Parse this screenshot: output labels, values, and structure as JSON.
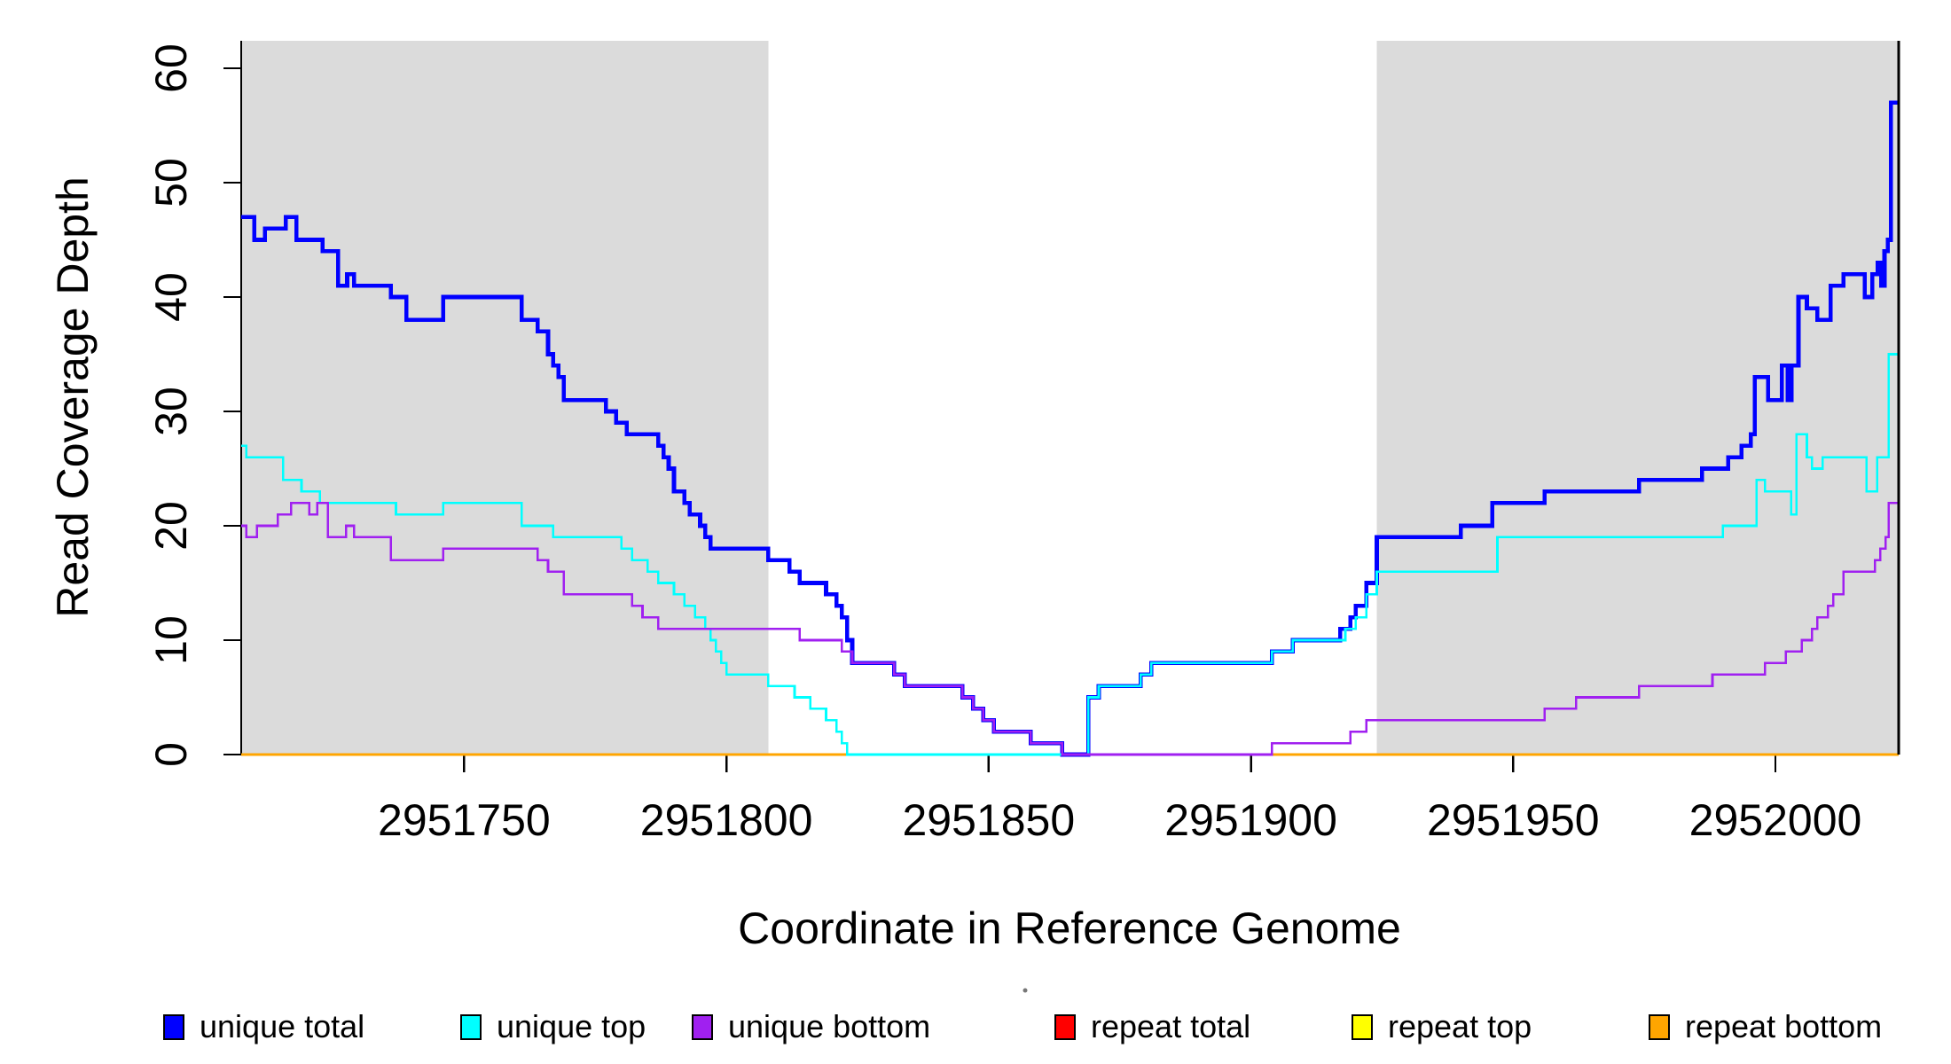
{
  "chart_data": {
    "type": "line",
    "step": true,
    "title": "",
    "xlabel": "Coordinate in Reference Genome",
    "ylabel": "Read Coverage Depth",
    "xlim": [
      2951707.5,
      2952023.5
    ],
    "ylim": [
      0,
      62
    ],
    "x_ticks": [
      2951750,
      2951800,
      2951850,
      2951900,
      2951950,
      2952000
    ],
    "y_ticks": [
      0,
      10,
      20,
      30,
      40,
      50,
      60
    ],
    "grid": false,
    "legend_position": "bottom",
    "colors": {
      "background": "#FFFFFF",
      "axis": "#000000",
      "shade": "#DBDBDB"
    },
    "shaded_regions": [
      {
        "x0": 2951707.5,
        "x1": 2951808,
        "color": "#DBDBDB"
      },
      {
        "x0": 2951924,
        "x1": 2952023.5,
        "color": "#DBDBDB",
        "right_border": true
      }
    ],
    "series": [
      {
        "name": "repeat total",
        "color": "#FF0000",
        "width": 2.6,
        "points": [
          [
            2951707.5,
            0
          ],
          [
            2952023.5,
            0
          ]
        ]
      },
      {
        "name": "repeat top",
        "color": "#FFFF00",
        "width": 2.6,
        "points": [
          [
            2951707.5,
            0
          ],
          [
            2952023.5,
            0
          ]
        ]
      },
      {
        "name": "repeat bottom",
        "color": "#FFA500",
        "width": 3,
        "points": [
          [
            2951707.5,
            0
          ],
          [
            2952023.5,
            0
          ]
        ]
      },
      {
        "name": "unique total",
        "color": "#0000FF",
        "width": 4.6,
        "points": [
          [
            2951707.5,
            47
          ],
          [
            2951710,
            45
          ],
          [
            2951712,
            46
          ],
          [
            2951716,
            47
          ],
          [
            2951718,
            45
          ],
          [
            2951723,
            44
          ],
          [
            2951726,
            41
          ],
          [
            2951727.7,
            42
          ],
          [
            2951729,
            41
          ],
          [
            2951736,
            40
          ],
          [
            2951739,
            38
          ],
          [
            2951746,
            40
          ],
          [
            2951761,
            38
          ],
          [
            2951764,
            37
          ],
          [
            2951766,
            35
          ],
          [
            2951767,
            34
          ],
          [
            2951768,
            33
          ],
          [
            2951769,
            31
          ],
          [
            2951777,
            30
          ],
          [
            2951779,
            29
          ],
          [
            2951781,
            28
          ],
          [
            2951787,
            27
          ],
          [
            2951788,
            26
          ],
          [
            2951789,
            25
          ],
          [
            2951790,
            23
          ],
          [
            2951792,
            22
          ],
          [
            2951793,
            21
          ],
          [
            2951795,
            20
          ],
          [
            2951796,
            19
          ],
          [
            2951797,
            18
          ],
          [
            2951808,
            17
          ],
          [
            2951812,
            16
          ],
          [
            2951814,
            15
          ],
          [
            2951819,
            14
          ],
          [
            2951821,
            13
          ],
          [
            2951822,
            12
          ],
          [
            2951823,
            10
          ],
          [
            2951824,
            8
          ],
          [
            2951832,
            7
          ],
          [
            2951834,
            6
          ],
          [
            2951845,
            5
          ],
          [
            2951847,
            4
          ],
          [
            2951849,
            3
          ],
          [
            2951851,
            2
          ],
          [
            2951858,
            1
          ],
          [
            2951864,
            0
          ],
          [
            2951869,
            5
          ],
          [
            2951871,
            6
          ],
          [
            2951879,
            7
          ],
          [
            2951881,
            8
          ],
          [
            2951904,
            9
          ],
          [
            2951908,
            10
          ],
          [
            2951917,
            11
          ],
          [
            2951919,
            12
          ],
          [
            2951920,
            13
          ],
          [
            2951922,
            15
          ],
          [
            2951924,
            19
          ],
          [
            2951940,
            20
          ],
          [
            2951946,
            22
          ],
          [
            2951956,
            23
          ],
          [
            2951974,
            24
          ],
          [
            2951986,
            25
          ],
          [
            2951991,
            26
          ],
          [
            2951993.5,
            27
          ],
          [
            2951995.3,
            28
          ],
          [
            2951996.1,
            33
          ],
          [
            2951998.6,
            31
          ],
          [
            2952001.2,
            34
          ],
          [
            2952002.3,
            31
          ],
          [
            2952003.1,
            34
          ],
          [
            2952004.4,
            40
          ],
          [
            2952006,
            39
          ],
          [
            2952008,
            38
          ],
          [
            2952010.5,
            41
          ],
          [
            2952013,
            42
          ],
          [
            2952017,
            40
          ],
          [
            2952018.5,
            42
          ],
          [
            2952019.5,
            43
          ],
          [
            2952020.2,
            41
          ],
          [
            2952020.8,
            44
          ],
          [
            2952021.4,
            45
          ],
          [
            2952022,
            57
          ]
        ]
      },
      {
        "name": "unique top",
        "color": "#00FFFF",
        "width": 2.6,
        "points": [
          [
            2951707.5,
            27
          ],
          [
            2951708.5,
            26
          ],
          [
            2951715.5,
            24
          ],
          [
            2951719,
            23
          ],
          [
            2951722.5,
            22
          ],
          [
            2951737,
            21
          ],
          [
            2951746,
            22
          ],
          [
            2951761,
            20
          ],
          [
            2951767,
            19
          ],
          [
            2951780,
            18
          ],
          [
            2951782,
            17
          ],
          [
            2951785,
            16
          ],
          [
            2951787,
            15
          ],
          [
            2951790,
            14
          ],
          [
            2951792,
            13
          ],
          [
            2951794,
            12
          ],
          [
            2951796,
            11
          ],
          [
            2951797,
            10
          ],
          [
            2951798,
            9
          ],
          [
            2951799,
            8
          ],
          [
            2951800,
            7
          ],
          [
            2951808,
            6
          ],
          [
            2951813,
            5
          ],
          [
            2951816,
            4
          ],
          [
            2951819,
            3
          ],
          [
            2951821,
            2
          ],
          [
            2951822,
            1
          ],
          [
            2951823,
            0
          ],
          [
            2951869,
            5
          ],
          [
            2951871,
            6
          ],
          [
            2951879,
            7
          ],
          [
            2951881,
            8
          ],
          [
            2951904,
            9
          ],
          [
            2951908,
            10
          ],
          [
            2951918,
            11
          ],
          [
            2951920,
            12
          ],
          [
            2951922,
            14
          ],
          [
            2951924,
            16
          ],
          [
            2951947,
            19
          ],
          [
            2951990,
            20
          ],
          [
            2951996.4,
            24
          ],
          [
            2951998,
            23
          ],
          [
            2952003,
            21
          ],
          [
            2952004,
            28
          ],
          [
            2952006,
            26
          ],
          [
            2952007,
            25
          ],
          [
            2952009,
            26
          ],
          [
            2952017.4,
            23
          ],
          [
            2952019.4,
            26
          ],
          [
            2952021.6,
            35
          ]
        ]
      },
      {
        "name": "unique bottom",
        "color": "#A020F0",
        "width": 2.6,
        "points": [
          [
            2951707.5,
            20
          ],
          [
            2951708.5,
            19
          ],
          [
            2951710.5,
            20
          ],
          [
            2951714.5,
            21
          ],
          [
            2951717,
            22
          ],
          [
            2951720.5,
            21
          ],
          [
            2951722,
            22
          ],
          [
            2951724,
            19
          ],
          [
            2951727.5,
            20
          ],
          [
            2951729,
            19
          ],
          [
            2951736,
            17
          ],
          [
            2951746,
            18
          ],
          [
            2951764,
            17
          ],
          [
            2951766,
            16
          ],
          [
            2951769,
            14
          ],
          [
            2951782,
            13
          ],
          [
            2951784,
            12
          ],
          [
            2951787,
            11
          ],
          [
            2951814,
            10
          ],
          [
            2951822,
            9
          ],
          [
            2951824,
            8
          ],
          [
            2951832,
            7
          ],
          [
            2951834,
            6
          ],
          [
            2951845,
            5
          ],
          [
            2951847,
            4
          ],
          [
            2951849,
            3
          ],
          [
            2951851,
            2
          ],
          [
            2951858,
            1
          ],
          [
            2951864,
            0
          ],
          [
            2951904,
            1
          ],
          [
            2951919,
            2
          ],
          [
            2951922,
            3
          ],
          [
            2951956,
            4
          ],
          [
            2951962,
            5
          ],
          [
            2951974,
            6
          ],
          [
            2951988,
            7
          ],
          [
            2951998,
            8
          ],
          [
            2952002,
            9
          ],
          [
            2952005,
            10
          ],
          [
            2952007,
            11
          ],
          [
            2952008,
            12
          ],
          [
            2952010,
            13
          ],
          [
            2952011,
            14
          ],
          [
            2952013,
            16
          ],
          [
            2952019,
            17
          ],
          [
            2952020,
            18
          ],
          [
            2952021,
            19
          ],
          [
            2952021.6,
            22
          ]
        ]
      }
    ],
    "legend": [
      {
        "label": "unique total",
        "color": "#0000FF"
      },
      {
        "label": "unique top",
        "color": "#00FFFF"
      },
      {
        "label": "unique bottom",
        "color": "#A020F0"
      },
      {
        "label": "repeat total",
        "color": "#FF0000"
      },
      {
        "label": "repeat top",
        "color": "#FFFF00"
      },
      {
        "label": "repeat bottom",
        "color": "#FFA500"
      }
    ]
  }
}
